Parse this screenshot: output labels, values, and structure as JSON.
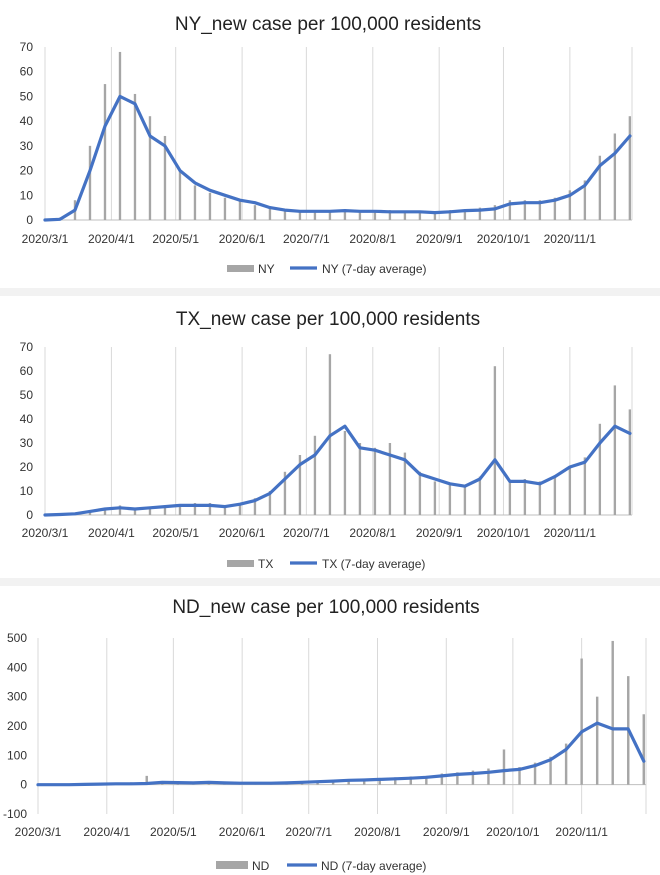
{
  "charts": [
    {
      "title": "NY_new case per 100,000 residents",
      "legend": {
        "bar_label": "NY",
        "line_label": "NY (7-day  average)"
      },
      "x_ticks": [
        "2020/3/1",
        "2020/4/1",
        "2020/5/1",
        "2020/6/1",
        "2020/7/1",
        "2020/8/1",
        "2020/9/1",
        "2020/10/1",
        "2020/11/1"
      ],
      "y_ticks": [
        "0",
        "10",
        "20",
        "30",
        "40",
        "50",
        "60",
        "70"
      ]
    },
    {
      "title": "TX_new case per 100,000 residents",
      "legend": {
        "bar_label": "TX",
        "line_label": "TX (7-day  average)"
      },
      "x_ticks": [
        "2020/3/1",
        "2020/4/1",
        "2020/5/1",
        "2020/6/1",
        "2020/7/1",
        "2020/8/1",
        "2020/9/1",
        "2020/10/1",
        "2020/11/1"
      ],
      "y_ticks": [
        "0",
        "10",
        "20",
        "30",
        "40",
        "50",
        "60",
        "70"
      ]
    },
    {
      "title": "ND_new case per 100,000 residents",
      "legend": {
        "bar_label": "ND",
        "line_label": "ND (7-day  average)"
      },
      "x_ticks": [
        "2020/3/1",
        "2020/4/1",
        "2020/5/1",
        "2020/6/1",
        "2020/7/1",
        "2020/8/1",
        "2020/9/1",
        "2020/10/1",
        "2020/11/1"
      ],
      "y_ticks": [
        "-100",
        "0",
        "100",
        "200",
        "300",
        "400",
        "500"
      ]
    }
  ],
  "chart_data": [
    {
      "type": "bar+line",
      "title": "NY_new case per 100,000 residents",
      "ylim": [
        0,
        70
      ],
      "x_range": [
        "2020/3/1",
        "2020/11/30"
      ],
      "grid": "vertical",
      "legend_position": "bottom",
      "colors": {
        "bars": "#a6a6a6",
        "line": "#4472c4"
      },
      "series": [
        {
          "name": "NY",
          "kind": "bar",
          "x": [
            "2020/3/1",
            "2020/3/8",
            "2020/3/15",
            "2020/3/22",
            "2020/3/29",
            "2020/4/5",
            "2020/4/12",
            "2020/4/19",
            "2020/4/26",
            "2020/5/3",
            "2020/5/10",
            "2020/5/17",
            "2020/5/24",
            "2020/5/31",
            "2020/6/7",
            "2020/6/14",
            "2020/6/21",
            "2020/6/28",
            "2020/7/5",
            "2020/7/12",
            "2020/7/19",
            "2020/7/26",
            "2020/8/2",
            "2020/8/9",
            "2020/8/16",
            "2020/8/23",
            "2020/8/30",
            "2020/9/6",
            "2020/9/13",
            "2020/9/20",
            "2020/9/27",
            "2020/10/4",
            "2020/10/11",
            "2020/10/18",
            "2020/10/25",
            "2020/11/1",
            "2020/11/8",
            "2020/11/15",
            "2020/11/22",
            "2020/11/29"
          ],
          "values": [
            0,
            1,
            8,
            30,
            55,
            68,
            51,
            42,
            34,
            20,
            14,
            11,
            9,
            8,
            6,
            5,
            4,
            4,
            3,
            4,
            4,
            3,
            3,
            4,
            3,
            3,
            3,
            4,
            4,
            5,
            6,
            8,
            8,
            8,
            9,
            12,
            16,
            26,
            35,
            42
          ]
        },
        {
          "name": "NY (7-day  average)",
          "kind": "line",
          "x": [
            "2020/3/1",
            "2020/3/8",
            "2020/3/15",
            "2020/3/22",
            "2020/3/29",
            "2020/4/5",
            "2020/4/12",
            "2020/4/19",
            "2020/4/26",
            "2020/5/3",
            "2020/5/10",
            "2020/5/17",
            "2020/5/24",
            "2020/5/31",
            "2020/6/7",
            "2020/6/14",
            "2020/6/21",
            "2020/6/28",
            "2020/7/5",
            "2020/7/12",
            "2020/7/19",
            "2020/7/26",
            "2020/8/2",
            "2020/8/9",
            "2020/8/16",
            "2020/8/23",
            "2020/8/30",
            "2020/9/6",
            "2020/9/13",
            "2020/9/20",
            "2020/9/27",
            "2020/10/4",
            "2020/10/11",
            "2020/10/18",
            "2020/10/25",
            "2020/11/1",
            "2020/11/8",
            "2020/11/15",
            "2020/11/22",
            "2020/11/29"
          ],
          "values": [
            0,
            0.3,
            4,
            20,
            38,
            50,
            47,
            34,
            30,
            20,
            15,
            12,
            10,
            8,
            7,
            5,
            4,
            3.5,
            3.5,
            3.5,
            3.8,
            3.5,
            3.5,
            3.3,
            3.3,
            3.3,
            3,
            3.3,
            3.8,
            4,
            4.5,
            6.5,
            7,
            7,
            8,
            10,
            14,
            22,
            27,
            34
          ]
        }
      ]
    },
    {
      "type": "bar+line",
      "title": "TX_new case per 100,000 residents",
      "ylim": [
        0,
        70
      ],
      "x_range": [
        "2020/3/1",
        "2020/11/30"
      ],
      "grid": "vertical",
      "legend_position": "bottom",
      "colors": {
        "bars": "#a6a6a6",
        "line": "#4472c4"
      },
      "series": [
        {
          "name": "TX",
          "kind": "bar",
          "x": [
            "2020/3/1",
            "2020/3/8",
            "2020/3/15",
            "2020/3/22",
            "2020/3/29",
            "2020/4/5",
            "2020/4/12",
            "2020/4/19",
            "2020/4/26",
            "2020/5/3",
            "2020/5/10",
            "2020/5/17",
            "2020/5/24",
            "2020/5/31",
            "2020/6/7",
            "2020/6/14",
            "2020/6/21",
            "2020/6/28",
            "2020/7/5",
            "2020/7/12",
            "2020/7/19",
            "2020/7/26",
            "2020/8/2",
            "2020/8/9",
            "2020/8/16",
            "2020/8/23",
            "2020/8/30",
            "2020/9/6",
            "2020/9/13",
            "2020/9/20",
            "2020/9/27",
            "2020/10/4",
            "2020/10/11",
            "2020/10/18",
            "2020/10/25",
            "2020/11/1",
            "2020/11/8",
            "2020/11/15",
            "2020/11/22",
            "2020/11/29"
          ],
          "values": [
            0,
            0.2,
            0.5,
            1.5,
            3,
            4,
            3,
            3,
            4,
            4,
            5,
            5,
            4,
            5,
            7,
            10,
            18,
            25,
            33,
            67,
            35,
            30,
            28,
            30,
            26,
            18,
            14,
            13,
            12,
            16,
            62,
            14,
            15,
            14,
            16,
            20,
            24,
            38,
            54,
            44
          ]
        },
        {
          "name": "TX (7-day  average)",
          "kind": "line",
          "x": [
            "2020/3/1",
            "2020/3/8",
            "2020/3/15",
            "2020/3/22",
            "2020/3/29",
            "2020/4/5",
            "2020/4/12",
            "2020/4/19",
            "2020/4/26",
            "2020/5/3",
            "2020/5/10",
            "2020/5/17",
            "2020/5/24",
            "2020/5/31",
            "2020/6/7",
            "2020/6/14",
            "2020/6/21",
            "2020/6/28",
            "2020/7/5",
            "2020/7/12",
            "2020/7/19",
            "2020/7/26",
            "2020/8/2",
            "2020/8/9",
            "2020/8/16",
            "2020/8/23",
            "2020/8/30",
            "2020/9/6",
            "2020/9/13",
            "2020/9/20",
            "2020/9/27",
            "2020/10/4",
            "2020/10/11",
            "2020/10/18",
            "2020/10/25",
            "2020/11/1",
            "2020/11/8",
            "2020/11/15",
            "2020/11/22",
            "2020/11/29"
          ],
          "values": [
            0,
            0.2,
            0.5,
            1.5,
            2.5,
            3,
            2.5,
            3,
            3.5,
            4,
            4,
            4,
            3.5,
            4.5,
            6,
            9,
            15,
            21,
            25,
            33,
            37,
            28,
            27,
            25,
            23,
            17,
            15,
            13,
            12,
            15,
            23,
            14,
            14,
            13,
            16,
            20,
            22,
            30,
            37,
            34
          ]
        }
      ]
    },
    {
      "type": "bar+line",
      "title": "ND_new case per 100,000 residents",
      "ylim": [
        -100,
        500
      ],
      "x_range": [
        "2020/3/1",
        "2020/11/30"
      ],
      "grid": "vertical",
      "legend_position": "bottom",
      "colors": {
        "bars": "#a6a6a6",
        "line": "#4472c4"
      },
      "series": [
        {
          "name": "ND",
          "kind": "bar",
          "x": [
            "2020/3/1",
            "2020/3/8",
            "2020/3/15",
            "2020/3/22",
            "2020/3/29",
            "2020/4/5",
            "2020/4/12",
            "2020/4/19",
            "2020/4/26",
            "2020/5/3",
            "2020/5/10",
            "2020/5/17",
            "2020/5/24",
            "2020/5/31",
            "2020/6/7",
            "2020/6/14",
            "2020/6/21",
            "2020/6/28",
            "2020/7/5",
            "2020/7/12",
            "2020/7/19",
            "2020/7/26",
            "2020/8/2",
            "2020/8/9",
            "2020/8/16",
            "2020/8/23",
            "2020/8/30",
            "2020/9/6",
            "2020/9/13",
            "2020/9/20",
            "2020/9/27",
            "2020/10/4",
            "2020/10/11",
            "2020/10/18",
            "2020/10/25",
            "2020/11/1",
            "2020/11/8",
            "2020/11/15",
            "2020/11/22",
            "2020/11/29"
          ],
          "values": [
            0,
            0,
            1,
            3,
            4,
            6,
            8,
            30,
            10,
            8,
            8,
            10,
            7,
            6,
            6,
            6,
            8,
            10,
            12,
            15,
            18,
            20,
            22,
            25,
            28,
            30,
            38,
            42,
            48,
            55,
            120,
            60,
            75,
            95,
            140,
            430,
            300,
            490,
            370,
            240
          ]
        },
        {
          "name": "ND (7-day  average)",
          "kind": "line",
          "x": [
            "2020/3/1",
            "2020/3/8",
            "2020/3/15",
            "2020/3/22",
            "2020/3/29",
            "2020/4/5",
            "2020/4/12",
            "2020/4/19",
            "2020/4/26",
            "2020/5/3",
            "2020/5/10",
            "2020/5/17",
            "2020/5/24",
            "2020/5/31",
            "2020/6/7",
            "2020/6/14",
            "2020/6/21",
            "2020/6/28",
            "2020/7/5",
            "2020/7/12",
            "2020/7/19",
            "2020/7/26",
            "2020/8/2",
            "2020/8/9",
            "2020/8/16",
            "2020/8/23",
            "2020/8/30",
            "2020/9/6",
            "2020/9/13",
            "2020/9/20",
            "2020/9/27",
            "2020/10/4",
            "2020/10/11",
            "2020/10/18",
            "2020/10/25",
            "2020/11/1",
            "2020/11/8",
            "2020/11/15",
            "2020/11/22",
            "2020/11/29"
          ],
          "values": [
            0,
            0,
            0,
            1,
            2,
            3,
            3,
            4,
            8,
            7,
            6,
            8,
            6,
            5,
            5,
            5,
            6,
            8,
            10,
            12,
            15,
            16,
            18,
            20,
            22,
            25,
            30,
            35,
            38,
            42,
            48,
            52,
            65,
            85,
            120,
            180,
            210,
            190,
            190,
            80
          ]
        }
      ]
    }
  ]
}
